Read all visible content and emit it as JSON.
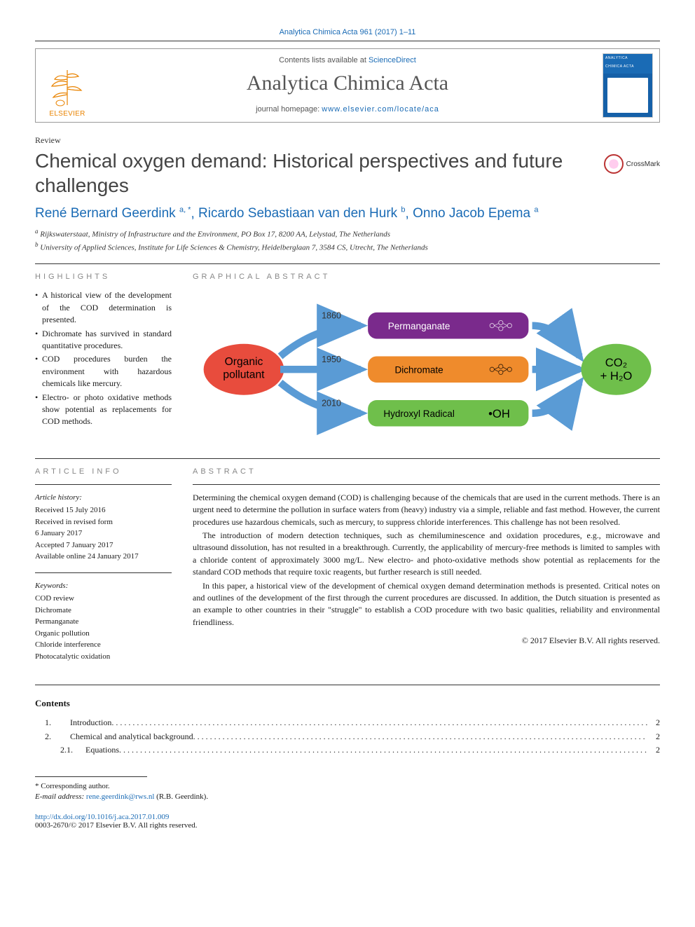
{
  "journalRef": "Analytica Chimica Acta 961 (2017) 1–11",
  "header": {
    "publisherLabel": "ELSEVIER",
    "contentsPrefix": "Contents lists available at ",
    "contentsLink": "ScienceDirect",
    "journalTitle": "Analytica Chimica Acta",
    "homepagePrefix": "journal homepage: ",
    "homepageUrl": "www.elsevier.com/locate/aca",
    "coverTitleTop": "ANALYTICA",
    "coverTitleBottom": "CHIMICA ACTA"
  },
  "articleType": "Review",
  "title": "Chemical oxygen demand: Historical perspectives and future challenges",
  "crossmarkLabel": "CrossMark",
  "authors": [
    {
      "name": "René Bernard Geerdink",
      "marks": "a, *"
    },
    {
      "name": "Ricardo Sebastiaan van den Hurk",
      "marks": "b"
    },
    {
      "name": "Onno Jacob Epema",
      "marks": "a"
    }
  ],
  "affiliations": [
    {
      "mark": "a",
      "text": "Rijkswaterstaat, Ministry of Infrastructure and the Environment, PO Box 17, 8200 AA, Lelystad, The Netherlands"
    },
    {
      "mark": "b",
      "text": "University of Applied Sciences, Institute for Life Sciences & Chemistry, Heidelberglaan 7, 3584 CS, Utrecht, The Netherlands"
    }
  ],
  "sections": {
    "highlightsLabel": "HIGHLIGHTS",
    "graphicalLabel": "GRAPHICAL ABSTRACT",
    "articleInfoLabel": "ARTICLE INFO",
    "abstractLabel": "ABSTRACT"
  },
  "highlights": [
    "A historical view of the development of the COD determination is presented.",
    "Dichromate has survived in standard quantitative procedures.",
    "COD procedures burden the environment with hazardous chemicals like mercury.",
    "Electro- or photo oxidative methods show potential as replacements for COD methods."
  ],
  "graphical": {
    "start": {
      "label": "Organic\npollutant",
      "fill": "#e84c3d",
      "textColor": "#000000"
    },
    "paths": [
      {
        "year": "1860",
        "box": "Permanganate",
        "fill": "#7a2a8c",
        "textColor": "#ffffff",
        "hasSmallMolecule": true
      },
      {
        "year": "1950",
        "box": "Dichromate",
        "fill": "#ef8b2c",
        "textColor": "#000000",
        "hasSmallMolecule": true
      },
      {
        "year": "2010",
        "box": "Hydroxyl Radical",
        "fill": "#6fbf4b",
        "textColor": "#000000",
        "hasSmallMolecule": false,
        "extraLabel": "•OH"
      }
    ],
    "end": {
      "labelTop": "CO₂",
      "labelBottom": "+ H₂O",
      "fill": "#6fbf4b",
      "textColor": "#000000"
    },
    "arrowColor": "#5a9bd5"
  },
  "articleInfo": {
    "historyLabel": "Article history:",
    "history": [
      "Received 15 July 2016",
      "Received in revised form",
      "6 January 2017",
      "Accepted 7 January 2017",
      "Available online 24 January 2017"
    ],
    "keywordsLabel": "Keywords:",
    "keywords": [
      "COD review",
      "Dichromate",
      "Permanganate",
      "Organic pollution",
      "Chloride interference",
      "Photocatalytic oxidation"
    ]
  },
  "abstract": [
    "Determining the chemical oxygen demand (COD) is challenging because of the chemicals that are used in the current methods. There is an urgent need to determine the pollution in surface waters from (heavy) industry via a simple, reliable and fast method. However, the current procedures use hazardous chemicals, such as mercury, to suppress chloride interferences. This challenge has not been resolved.",
    "The introduction of modern detection techniques, such as chemiluminescence and oxidation procedures, e.g., microwave and ultrasound dissolution, has not resulted in a breakthrough. Currently, the applicability of mercury-free methods is limited to samples with a chloride content of approximately 3000 mg/L. New electro- and photo-oxidative methods show potential as replacements for the standard COD methods that require toxic reagents, but further research is still needed.",
    "In this paper, a historical view of the development of chemical oxygen demand determination methods is presented. Critical notes on and outlines of the development of the first through the current procedures are discussed. In addition, the Dutch situation is presented as an example to other countries in their \"struggle\" to establish a COD procedure with two basic qualities, reliability and environmental friendliness."
  ],
  "copyright": "© 2017 Elsevier B.V. All rights reserved.",
  "contentsHeading": "Contents",
  "toc": [
    {
      "num": "1.",
      "title": "Introduction",
      "page": "2",
      "sub": false
    },
    {
      "num": "2.",
      "title": "Chemical and analytical background",
      "page": "2",
      "sub": false
    },
    {
      "num": "2.1.",
      "title": "Equations",
      "page": "2",
      "sub": true
    }
  ],
  "footnote": {
    "corrLabel": "* Corresponding author.",
    "emailLabel": "E-mail address:",
    "email": "rene.geerdink@rws.nl",
    "emailSuffix": "(R.B. Geerdink)."
  },
  "doi": {
    "url": "http://dx.doi.org/10.1016/j.aca.2017.01.009",
    "issn": "0003-2670/© 2017 Elsevier B.V. All rights reserved."
  }
}
